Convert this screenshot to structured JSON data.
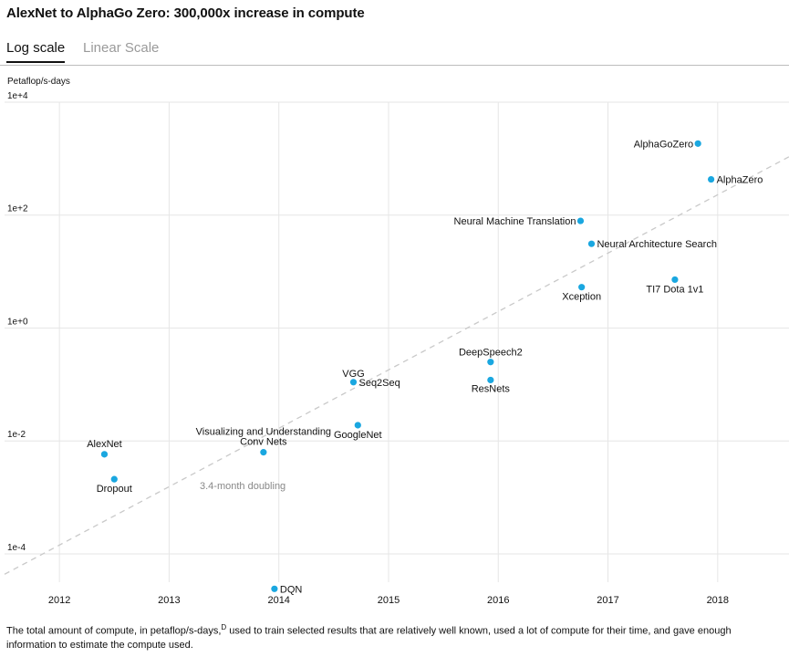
{
  "title": "AlexNet to AlphaGo Zero: 300,000x increase in compute",
  "tabs": [
    {
      "label": "Log scale",
      "active": true
    },
    {
      "label": "Linear Scale",
      "active": false
    }
  ],
  "caption": {
    "before": "The total amount of compute, in petaflop/s-days,",
    "sup": "D",
    "after": " used to train selected results that are relatively well known, used a lot of compute for their time, and gave enough information to estimate the compute used."
  },
  "colors": {
    "point": "#1aa7e0",
    "grid": "#e6e6e6",
    "trend": "#c9c9c9",
    "annotation": "#888888"
  },
  "chart_data": {
    "type": "scatter",
    "ylabel": "Petaflop/s-days",
    "yscale": "log",
    "ylim": [
      3.15e-05,
      10000
    ],
    "xlim": [
      2011.5,
      2018.65
    ],
    "yticks": [
      {
        "value": 10000,
        "label": "1e+4"
      },
      {
        "value": 100,
        "label": "1e+2"
      },
      {
        "value": 1,
        "label": "1e+0"
      },
      {
        "value": 0.01,
        "label": "1e-2"
      },
      {
        "value": 0.0001,
        "label": "1e-4"
      }
    ],
    "xticks": [
      2012,
      2013,
      2014,
      2015,
      2016,
      2017,
      2018
    ],
    "points": [
      {
        "label": "AlexNet",
        "x": 2012.41,
        "y": 0.0058
      },
      {
        "label": "Dropout",
        "x": 2012.5,
        "y": 0.0021
      },
      {
        "label": "DQN",
        "x": 2013.96,
        "y": 2.4e-05
      },
      {
        "label": "Visualizing and Understanding Conv Nets",
        "x": 2013.86,
        "y": 0.0063
      },
      {
        "label": "VGG",
        "x": 2014.68,
        "y": 0.11
      },
      {
        "label": "Seq2Seq",
        "x": 2014.68,
        "y": 0.11
      },
      {
        "label": "GoogleNet",
        "x": 2014.72,
        "y": 0.019
      },
      {
        "label": "DeepSpeech2",
        "x": 2015.93,
        "y": 0.25
      },
      {
        "label": "ResNets",
        "x": 2015.93,
        "y": 0.12
      },
      {
        "label": "Xception",
        "x": 2016.76,
        "y": 5.3
      },
      {
        "label": "Neural Machine Translation",
        "x": 2016.75,
        "y": 79
      },
      {
        "label": "Neural Architecture Search",
        "x": 2016.85,
        "y": 31
      },
      {
        "label": "TI7 Dota 1v1",
        "x": 2017.61,
        "y": 7.2
      },
      {
        "label": "AlphaGoZero",
        "x": 2017.82,
        "y": 1850
      },
      {
        "label": "AlphaZero",
        "x": 2017.94,
        "y": 430
      }
    ],
    "trend": {
      "label": "3.4-month doubling",
      "start": {
        "x": 2011.5,
        "y": 4.35e-05
      },
      "end": {
        "x": 2018.65,
        "y": 1080
      }
    }
  }
}
